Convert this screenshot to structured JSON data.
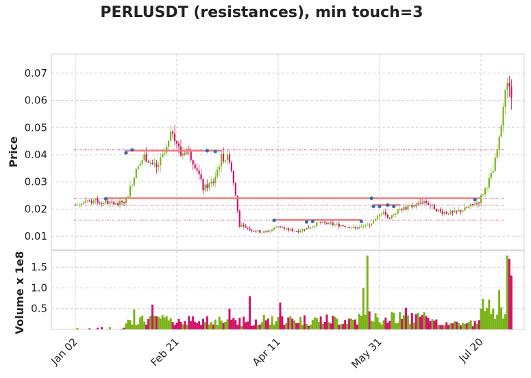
{
  "title": "PERLUSDT (resistances), min touch=3",
  "colors": {
    "up": "#7ab317",
    "down": "#d3126a",
    "wick_up": "#8bc34a",
    "wick_down": "#c2185b",
    "resistance": "#f08080",
    "touch_point": "#2e6fb5",
    "grid": "#cfcfcf",
    "frame": "#d9d9d9"
  },
  "chart_data": [
    {
      "type": "candlestick",
      "panel": "price",
      "ylabel": "Price",
      "ylim": [
        0.005,
        0.077
      ],
      "yticks": [
        "0.01",
        "0.02",
        "0.03",
        "0.04",
        "0.05",
        "0.06",
        "0.07"
      ],
      "grid": true,
      "x_ticks": [
        "Jan 02",
        "Feb 21",
        "Apr 11",
        "May 31",
        "Jul 20"
      ],
      "x_range_days": [
        -8,
        220
      ],
      "closes_by_day": [
        [
          0,
          0.0215
        ],
        [
          10,
          0.023
        ],
        [
          15,
          0.0225
        ],
        [
          21,
          0.0218
        ],
        [
          25,
          0.0235
        ],
        [
          30,
          0.034
        ],
        [
          34,
          0.0395
        ],
        [
          40,
          0.035
        ],
        [
          45,
          0.042
        ],
        [
          48,
          0.049
        ],
        [
          52,
          0.04
        ],
        [
          55,
          0.042
        ],
        [
          60,
          0.035
        ],
        [
          63,
          0.0275
        ],
        [
          68,
          0.03
        ],
        [
          72,
          0.039
        ],
        [
          76,
          0.0385
        ],
        [
          79,
          0.025
        ],
        [
          81,
          0.014
        ],
        [
          86,
          0.0125
        ],
        [
          92,
          0.0115
        ],
        [
          96,
          0.012
        ],
        [
          100,
          0.014
        ],
        [
          104,
          0.0125
        ],
        [
          110,
          0.012
        ],
        [
          116,
          0.0135
        ],
        [
          120,
          0.015
        ],
        [
          126,
          0.0145
        ],
        [
          132,
          0.014
        ],
        [
          138,
          0.013
        ],
        [
          144,
          0.014
        ],
        [
          148,
          0.016
        ],
        [
          152,
          0.0195
        ],
        [
          154,
          0.0165
        ],
        [
          160,
          0.02
        ],
        [
          166,
          0.021
        ],
        [
          172,
          0.023
        ],
        [
          176,
          0.021
        ],
        [
          180,
          0.019
        ],
        [
          186,
          0.0185
        ],
        [
          192,
          0.02
        ],
        [
          196,
          0.0215
        ],
        [
          199,
          0.023
        ],
        [
          203,
          0.029
        ],
        [
          206,
          0.034
        ],
        [
          209,
          0.045
        ],
        [
          211,
          0.06
        ],
        [
          213,
          0.064
        ],
        [
          215,
          0.062
        ]
      ],
      "resistance_lines": [
        {
          "level": 0.0415,
          "start_day": 25,
          "end_day": 72
        },
        {
          "level": 0.024,
          "start_day": 15,
          "end_day": 200
        },
        {
          "level": 0.016,
          "start_day": 98,
          "end_day": 141
        },
        {
          "level": 0.0215,
          "start_day": 147,
          "end_day": 160
        }
      ],
      "reference_levels": [
        0.0418,
        0.024,
        0.0215,
        0.016
      ],
      "touch_points": [
        [
          15,
          0.0238
        ],
        [
          25,
          0.0407
        ],
        [
          28,
          0.0418
        ],
        [
          65,
          0.0415
        ],
        [
          69,
          0.0412
        ],
        [
          98,
          0.0159
        ],
        [
          114,
          0.0153
        ],
        [
          117,
          0.0155
        ],
        [
          141,
          0.0155
        ],
        [
          146,
          0.024
        ],
        [
          147,
          0.021
        ],
        [
          150,
          0.021
        ],
        [
          154,
          0.0215
        ],
        [
          157,
          0.021
        ],
        [
          197,
          0.0235
        ]
      ]
    },
    {
      "type": "bar",
      "panel": "volume",
      "ylabel": "Volume x 1e8",
      "ylim": [
        0,
        1.9
      ],
      "yticks": [
        "0.5",
        "1.0",
        "1.5"
      ],
      "grid": true,
      "spikes_by_day": [
        [
          29,
          0.48
        ],
        [
          38,
          0.6
        ],
        [
          76,
          0.5
        ],
        [
          86,
          0.8
        ],
        [
          101,
          0.65
        ],
        [
          142,
          1.0
        ],
        [
          144,
          1.78
        ],
        [
          163,
          0.52
        ],
        [
          209,
          0.95
        ],
        [
          213,
          1.78
        ],
        [
          214,
          1.7
        ],
        [
          215,
          1.3
        ]
      ]
    }
  ]
}
